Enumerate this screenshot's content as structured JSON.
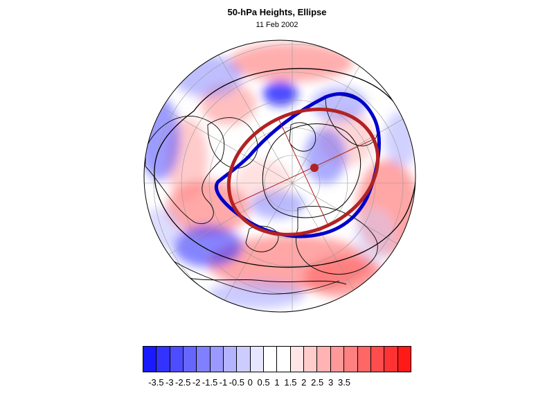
{
  "title": "50-hPa Heights, Ellipse",
  "subtitle": "11 Feb 2002",
  "map": {
    "projection": "north-polar-stereographic",
    "anomaly_colors": {
      "negative": "#0000ff",
      "positive": "#ff0000",
      "neutral": "#ffffff"
    },
    "vortex_edge_color": "#0000cc",
    "ellipse_color": "#b22222",
    "ellipse_center_color": "#b22222",
    "coastline_color": "#000000"
  },
  "colorbar": {
    "colors": [
      "#1a1aff",
      "#3333ff",
      "#4d4dff",
      "#6666ff",
      "#8080ff",
      "#9999ff",
      "#b3b3ff",
      "#ccccff",
      "#e6e6ff",
      "#ffffff",
      "#ffffff",
      "#ffe6e6",
      "#ffcccc",
      "#ffb3b3",
      "#ff9999",
      "#ff8080",
      "#ff6666",
      "#ff4d4d",
      "#ff3333",
      "#ff1a1a"
    ],
    "tick_labels": [
      "-3.5",
      "-3",
      "-2.5",
      "-2",
      "-1.5",
      "-1",
      "-0.5",
      "0",
      "0.5",
      "1",
      "1.5",
      "2",
      "2.5",
      "3",
      "3.5"
    ]
  }
}
